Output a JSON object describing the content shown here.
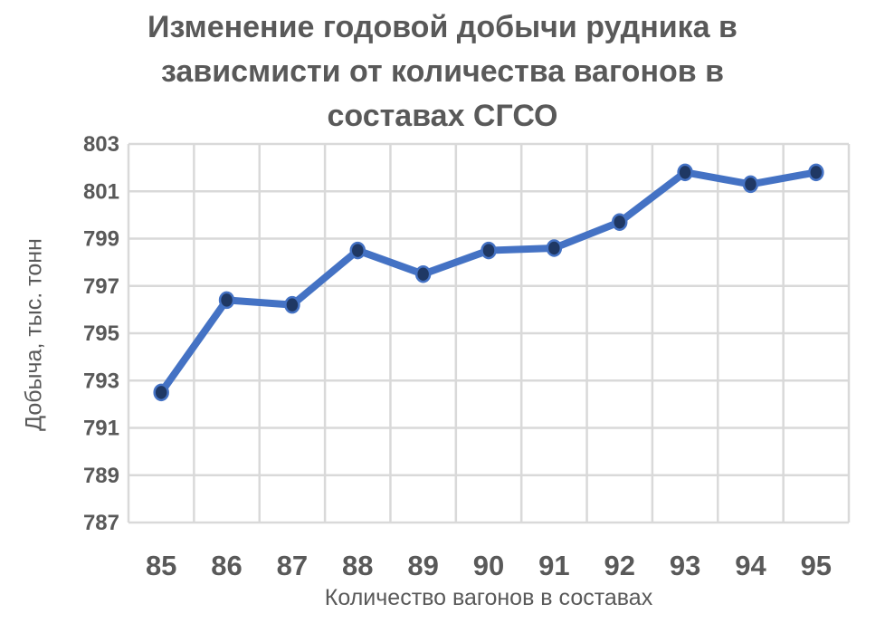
{
  "chart_data": {
    "type": "line",
    "title": "Изменение годовой добычи рудника в зависмисти от количества вагонов в составах СГСО",
    "xlabel": "Количество вагонов в составах",
    "ylabel": "Добыча, тыс. тонн",
    "categories": [
      "85",
      "86",
      "87",
      "88",
      "89",
      "90",
      "91",
      "92",
      "93",
      "94",
      "95"
    ],
    "series": [
      {
        "values": [
          792.5,
          796.4,
          796.2,
          798.5,
          797.5,
          798.5,
          798.6,
          799.7,
          801.8,
          801.3,
          801.8
        ]
      }
    ],
    "ylim": [
      787,
      803
    ],
    "yticks": [
      "787",
      "789",
      "791",
      "793",
      "795",
      "797",
      "799",
      "801",
      "803"
    ],
    "grid": true,
    "markers": true,
    "colors": {
      "line": "#4472C4",
      "marker": "#1F3864",
      "grid": "#D9D9D9",
      "text": "#595959"
    }
  }
}
